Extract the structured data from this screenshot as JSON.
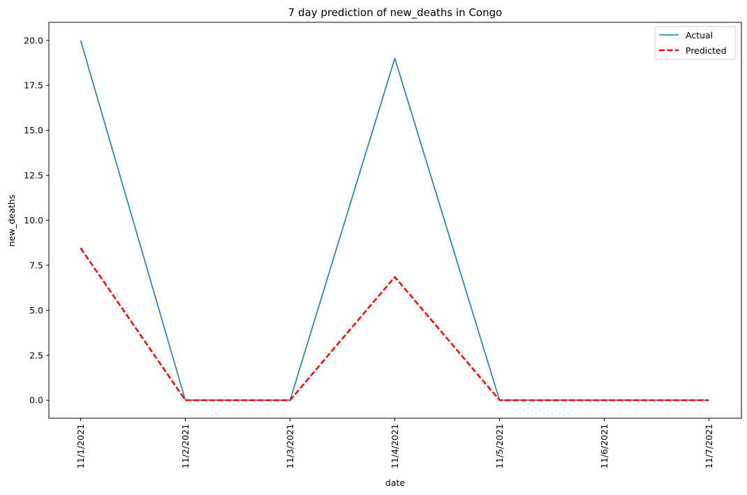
{
  "chart_data": {
    "type": "line",
    "title": "7 day prediction of new_deaths in Congo",
    "xlabel": "date",
    "ylabel": "new_deaths",
    "categories": [
      "11/1/2021",
      "11/2/2021",
      "11/3/2021",
      "11/4/2021",
      "11/5/2021",
      "11/6/2021",
      "11/7/2021"
    ],
    "series": [
      {
        "name": "Actual",
        "values": [
          20,
          0,
          0,
          19,
          0,
          0,
          0
        ],
        "color": "#1f77b4",
        "style": "solid"
      },
      {
        "name": "Predicted",
        "values": [
          8.45,
          0,
          0,
          6.85,
          0,
          0,
          0
        ],
        "color": "#ff0000",
        "style": "dashed"
      }
    ],
    "yticks": [
      "0.0",
      "2.5",
      "5.0",
      "7.5",
      "10.0",
      "12.5",
      "15.0",
      "17.5",
      "20.0"
    ],
    "ylim": [
      -1,
      21
    ],
    "grid": false,
    "legend_position": "top-right"
  }
}
